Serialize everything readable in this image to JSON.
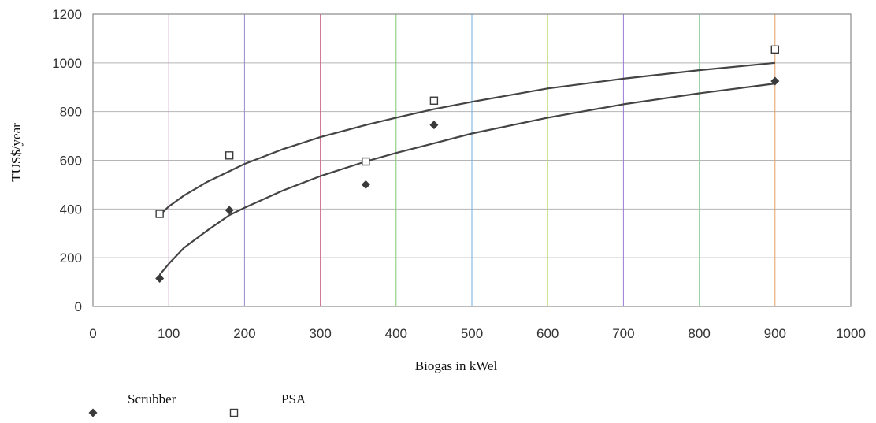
{
  "chart_data": {
    "type": "scatter",
    "title": "",
    "xlabel": "Biogas in kWel",
    "ylabel": "TUS$/year",
    "xlim": [
      0,
      1000
    ],
    "ylim": [
      0,
      1200
    ],
    "x_ticks": [
      0,
      100,
      200,
      300,
      400,
      500,
      600,
      700,
      800,
      900,
      1000
    ],
    "y_ticks": [
      0,
      200,
      400,
      600,
      800,
      1000,
      1200
    ],
    "grid": true,
    "legend_position": "bottom-left",
    "series": [
      {
        "name": "Scrubber",
        "marker": "filled-diamond",
        "color": "#3a3a3a",
        "points": [
          {
            "x": 88,
            "y": 115
          },
          {
            "x": 180,
            "y": 395
          },
          {
            "x": 360,
            "y": 500
          },
          {
            "x": 450,
            "y": 745
          },
          {
            "x": 900,
            "y": 925
          }
        ],
        "trend": [
          {
            "x": 88,
            "y": 130
          },
          {
            "x": 100,
            "y": 175
          },
          {
            "x": 120,
            "y": 240
          },
          {
            "x": 150,
            "y": 310
          },
          {
            "x": 180,
            "y": 375
          },
          {
            "x": 200,
            "y": 405
          },
          {
            "x": 250,
            "y": 475
          },
          {
            "x": 300,
            "y": 535
          },
          {
            "x": 360,
            "y": 595
          },
          {
            "x": 400,
            "y": 630
          },
          {
            "x": 450,
            "y": 670
          },
          {
            "x": 500,
            "y": 710
          },
          {
            "x": 600,
            "y": 775
          },
          {
            "x": 700,
            "y": 830
          },
          {
            "x": 800,
            "y": 875
          },
          {
            "x": 900,
            "y": 915
          }
        ]
      },
      {
        "name": "PSA",
        "marker": "open-square",
        "color": "#3a3a3a",
        "points": [
          {
            "x": 88,
            "y": 380
          },
          {
            "x": 180,
            "y": 620
          },
          {
            "x": 360,
            "y": 595
          },
          {
            "x": 450,
            "y": 845
          },
          {
            "x": 900,
            "y": 1055
          }
        ],
        "trend": [
          {
            "x": 88,
            "y": 375
          },
          {
            "x": 100,
            "y": 410
          },
          {
            "x": 120,
            "y": 455
          },
          {
            "x": 150,
            "y": 510
          },
          {
            "x": 180,
            "y": 555
          },
          {
            "x": 200,
            "y": 585
          },
          {
            "x": 250,
            "y": 645
          },
          {
            "x": 300,
            "y": 695
          },
          {
            "x": 360,
            "y": 745
          },
          {
            "x": 400,
            "y": 775
          },
          {
            "x": 450,
            "y": 810
          },
          {
            "x": 500,
            "y": 840
          },
          {
            "x": 600,
            "y": 895
          },
          {
            "x": 700,
            "y": 935
          },
          {
            "x": 800,
            "y": 970
          },
          {
            "x": 900,
            "y": 1000
          }
        ]
      }
    ],
    "gridline_colors": [
      "#e8c85a",
      "#c890c8",
      "#9a8ad0",
      "#d06a8a",
      "#80c870",
      "#6fb0e0",
      "#b8d868",
      "#9a7ad8",
      "#90d0a0",
      "#e0a060",
      "#c060b0"
    ]
  }
}
